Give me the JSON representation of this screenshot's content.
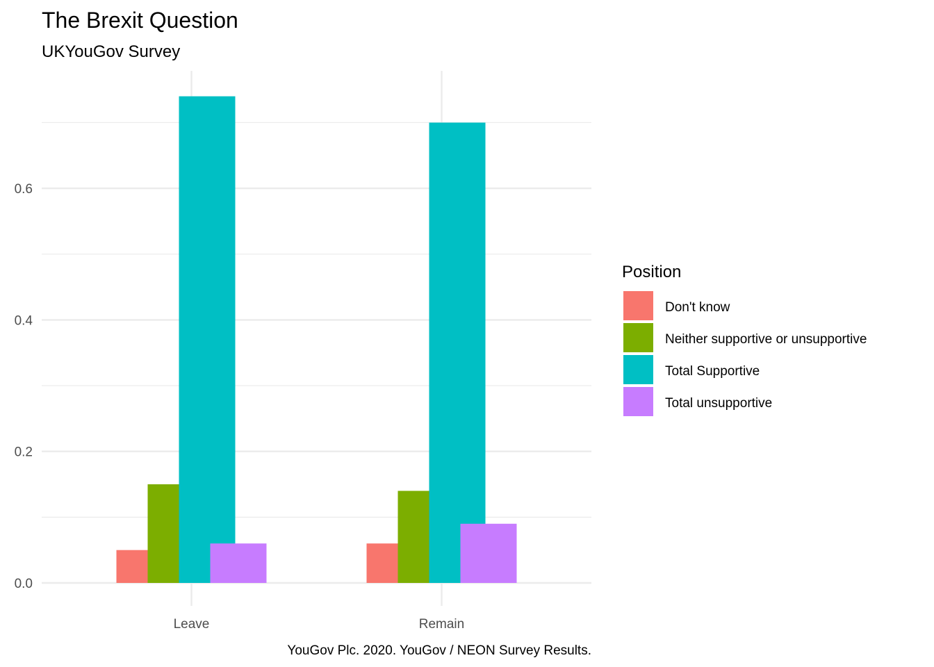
{
  "chart_data": {
    "type": "bar",
    "title": "The Brexit Question",
    "subtitle": "UKYouGov Survey",
    "caption": "YouGov Plc. 2020. YouGov / NEON Survey Results.",
    "xlabel": "",
    "ylabel": "",
    "categories": [
      "Leave",
      "Remain"
    ],
    "ylim": [
      0,
      0.74
    ],
    "y_ticks": [
      0.0,
      0.2,
      0.4,
      0.6
    ],
    "y_tick_labels": [
      "0.0",
      "0.2",
      "0.4",
      "0.6"
    ],
    "grid": true,
    "legend": {
      "title": "Position",
      "placement": "right"
    },
    "series": [
      {
        "name": "Don't know",
        "color": "#F8766D",
        "values": [
          0.05,
          0.06
        ]
      },
      {
        "name": "Neither supportive or unsupportive",
        "color": "#7CAE00",
        "values": [
          0.15,
          0.14
        ]
      },
      {
        "name": "Total Supportive",
        "color": "#00BFC4",
        "values": [
          0.74,
          0.7
        ]
      },
      {
        "name": "Total unsupportive",
        "color": "#C77CFF",
        "values": [
          0.06,
          0.09
        ]
      }
    ]
  }
}
